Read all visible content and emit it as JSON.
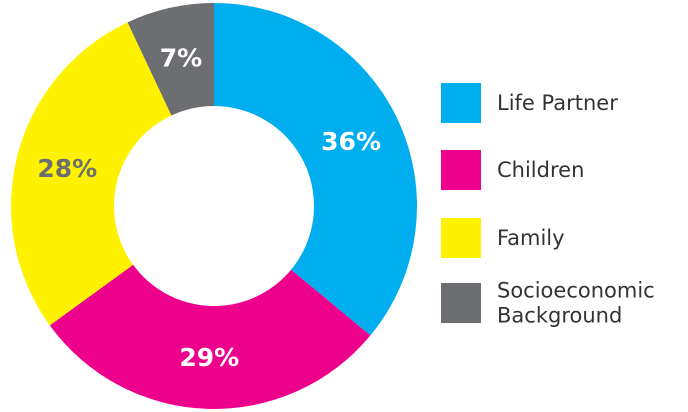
{
  "chart_data": {
    "type": "pie",
    "donut": true,
    "categories": [
      "Life Partner",
      "Children",
      "Family",
      "Socioeconomic Background"
    ],
    "values": [
      36,
      29,
      28,
      7
    ],
    "labels": [
      "36%",
      "29%",
      "28%",
      "7%"
    ],
    "colors": [
      "#00AEEF",
      "#EC008C",
      "#FFF200",
      "#6D6E71"
    ],
    "label_colors": [
      "#ffffff",
      "#ffffff",
      "#6D6E71",
      "#ffffff"
    ],
    "legend": {
      "position": "right",
      "items": [
        {
          "lines": [
            "Life Partner"
          ]
        },
        {
          "lines": [
            "Children"
          ]
        },
        {
          "lines": [
            "Family"
          ]
        },
        {
          "lines": [
            "Socioeconomic",
            "Background"
          ]
        }
      ]
    }
  }
}
